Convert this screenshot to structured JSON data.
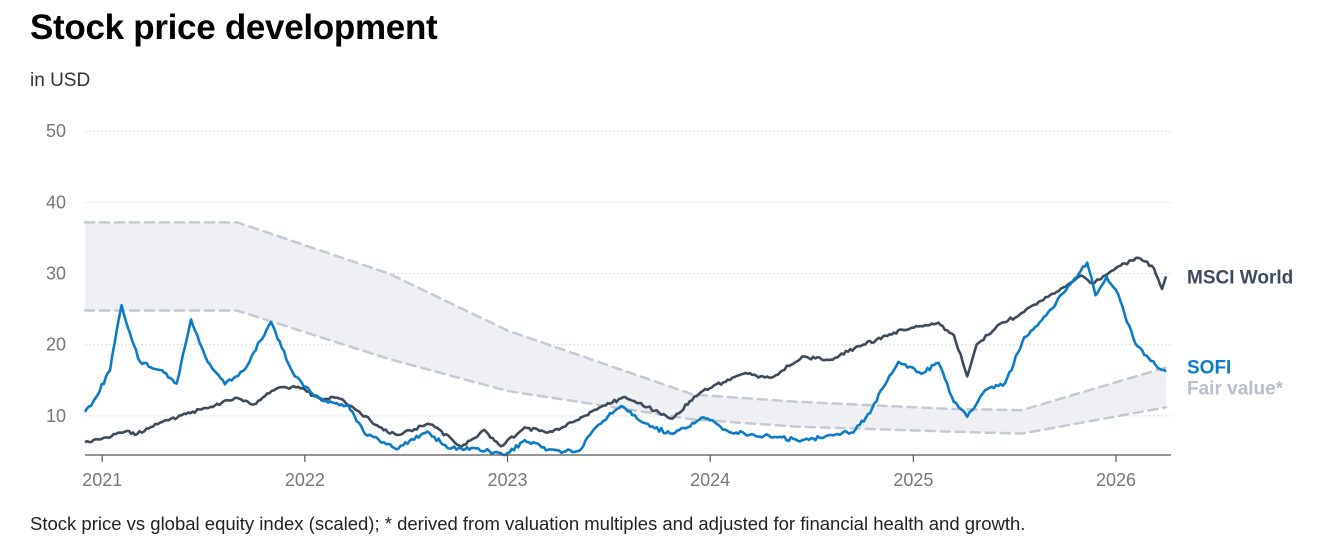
{
  "title": "Stock price development",
  "subtitle": "in USD",
  "footnote": "Stock price vs global equity index (scaled); * derived from valuation multiples and adjusted for financial health and growth.",
  "colors": {
    "sofi": "#0a7cc7",
    "msci": "#3d4a5c",
    "fair_band_fill": "#eef0f3",
    "fair_band_edge": "#c3c9d2",
    "fair_label": "#b8bfc9",
    "grid": "#dcdcdc",
    "axis": "#555555"
  },
  "chart_data": {
    "type": "line",
    "x_axis": {
      "type": "date",
      "range": [
        "2020-12-01",
        "2026-04-10"
      ],
      "ticks": [
        "2021",
        "2022",
        "2023",
        "2024",
        "2025",
        "2026"
      ]
    },
    "y_axis": {
      "range": [
        4.5,
        52
      ],
      "ticks": [
        "10",
        "20",
        "30",
        "40",
        "50"
      ],
      "grid": true
    },
    "legend": "end-of-line labels (right)",
    "series": [
      {
        "name": "MSCI World",
        "points": [
          [
            "2020-12-01",
            6.3
          ],
          [
            "2021-01-01",
            6.8
          ],
          [
            "2021-02-15",
            7.9
          ],
          [
            "2021-03-01",
            7.4
          ],
          [
            "2021-04-15",
            9.0
          ],
          [
            "2021-06-01",
            10.3
          ],
          [
            "2021-07-15",
            11.2
          ],
          [
            "2021-09-01",
            12.6
          ],
          [
            "2021-10-01",
            11.6
          ],
          [
            "2021-11-10",
            13.8
          ],
          [
            "2021-12-20",
            14.1
          ],
          [
            "2022-02-01",
            12.2
          ],
          [
            "2022-03-01",
            12.6
          ],
          [
            "2022-04-01",
            11.0
          ],
          [
            "2022-05-15",
            8.4
          ],
          [
            "2022-06-15",
            7.3
          ],
          [
            "2022-08-15",
            8.9
          ],
          [
            "2022-10-10",
            5.6
          ],
          [
            "2022-11-20",
            8.0
          ],
          [
            "2022-12-20",
            5.7
          ],
          [
            "2023-02-01",
            8.3
          ],
          [
            "2023-03-15",
            7.6
          ],
          [
            "2023-05-01",
            9.2
          ],
          [
            "2023-06-15",
            11.2
          ],
          [
            "2023-08-01",
            12.6
          ],
          [
            "2023-10-25",
            9.6
          ],
          [
            "2023-12-15",
            13.4
          ],
          [
            "2024-03-01",
            16.0
          ],
          [
            "2024-04-20",
            15.3
          ],
          [
            "2024-06-15",
            18.3
          ],
          [
            "2024-08-05",
            17.8
          ],
          [
            "2024-09-25",
            19.8
          ],
          [
            "2024-11-15",
            21.3
          ],
          [
            "2024-12-25",
            22.3
          ],
          [
            "2025-02-15",
            23.0
          ],
          [
            "2025-03-15",
            21.4
          ],
          [
            "2025-04-08",
            15.5
          ],
          [
            "2025-04-25",
            20.0
          ],
          [
            "2025-06-01",
            22.6
          ],
          [
            "2025-07-15",
            24.4
          ],
          [
            "2025-08-15",
            26.0
          ],
          [
            "2025-09-20",
            27.6
          ],
          [
            "2025-10-30",
            29.8
          ],
          [
            "2025-11-20",
            28.6
          ],
          [
            "2026-01-01",
            30.8
          ],
          [
            "2026-02-10",
            32.3
          ],
          [
            "2026-03-10",
            30.8
          ],
          [
            "2026-03-25",
            27.8
          ],
          [
            "2026-04-01",
            29.6
          ]
        ]
      },
      {
        "name": "SOFI",
        "points": [
          [
            "2020-12-01",
            10.6
          ],
          [
            "2020-12-20",
            12.5
          ],
          [
            "2021-01-15",
            16.5
          ],
          [
            "2021-02-05",
            25.6
          ],
          [
            "2021-02-20",
            21.5
          ],
          [
            "2021-03-10",
            17.5
          ],
          [
            "2021-04-15",
            16.5
          ],
          [
            "2021-05-15",
            14.5
          ],
          [
            "2021-06-10",
            23.5
          ],
          [
            "2021-07-10",
            17.5
          ],
          [
            "2021-08-10",
            14.5
          ],
          [
            "2021-09-15",
            16.5
          ],
          [
            "2021-11-01",
            23.2
          ],
          [
            "2021-12-10",
            16.0
          ],
          [
            "2022-01-15",
            13.0
          ],
          [
            "2022-02-20",
            11.8
          ],
          [
            "2022-03-20",
            11.5
          ],
          [
            "2022-04-20",
            7.5
          ],
          [
            "2022-05-20",
            6.3
          ],
          [
            "2022-06-15",
            5.4
          ],
          [
            "2022-08-10",
            7.8
          ],
          [
            "2022-09-15",
            5.5
          ],
          [
            "2022-11-01",
            5.4
          ],
          [
            "2022-12-28",
            4.5
          ],
          [
            "2023-02-01",
            6.5
          ],
          [
            "2023-03-15",
            5.2
          ],
          [
            "2023-05-10",
            5.0
          ],
          [
            "2023-06-10",
            8.5
          ],
          [
            "2023-07-25",
            11.5
          ],
          [
            "2023-09-15",
            8.5
          ],
          [
            "2023-10-25",
            7.4
          ],
          [
            "2023-12-20",
            9.8
          ],
          [
            "2024-02-01",
            7.9
          ],
          [
            "2024-03-15",
            7.3
          ],
          [
            "2024-05-01",
            7.0
          ],
          [
            "2024-06-15",
            6.5
          ],
          [
            "2024-08-01",
            7.3
          ],
          [
            "2024-09-15",
            7.8
          ],
          [
            "2024-10-15",
            10.5
          ],
          [
            "2024-11-15",
            15.0
          ],
          [
            "2024-12-05",
            17.5
          ],
          [
            "2025-01-15",
            16.0
          ],
          [
            "2025-02-15",
            17.5
          ],
          [
            "2025-03-15",
            12.0
          ],
          [
            "2025-04-08",
            9.9
          ],
          [
            "2025-05-10",
            13.5
          ],
          [
            "2025-06-15",
            14.5
          ],
          [
            "2025-07-20",
            21.0
          ],
          [
            "2025-09-01",
            24.5
          ],
          [
            "2025-10-15",
            29.0
          ],
          [
            "2025-11-10",
            31.5
          ],
          [
            "2025-11-25",
            27.0
          ],
          [
            "2025-12-15",
            29.5
          ],
          [
            "2026-01-05",
            27.0
          ],
          [
            "2026-02-05",
            20.0
          ],
          [
            "2026-03-01",
            18.0
          ],
          [
            "2026-03-25",
            16.5
          ],
          [
            "2026-04-01",
            16.2
          ]
        ]
      },
      {
        "name": "Fair value*",
        "type": "band",
        "upper": [
          [
            "2020-12-01",
            37.2
          ],
          [
            "2021-09-01",
            37.2
          ],
          [
            "2022-06-01",
            30.0
          ],
          [
            "2023-01-01",
            22.0
          ],
          [
            "2023-12-01",
            13.0
          ],
          [
            "2024-06-01",
            12.0
          ],
          [
            "2025-03-01",
            11.0
          ],
          [
            "2025-07-15",
            10.8
          ],
          [
            "2026-04-01",
            16.8
          ]
        ],
        "lower": [
          [
            "2020-12-01",
            24.8
          ],
          [
            "2021-09-01",
            24.8
          ],
          [
            "2022-06-01",
            18.0
          ],
          [
            "2023-01-01",
            13.5
          ],
          [
            "2023-12-01",
            9.5
          ],
          [
            "2024-06-01",
            8.5
          ],
          [
            "2025-03-01",
            7.8
          ],
          [
            "2025-07-15",
            7.5
          ],
          [
            "2026-04-01",
            11.2
          ]
        ]
      }
    ]
  }
}
